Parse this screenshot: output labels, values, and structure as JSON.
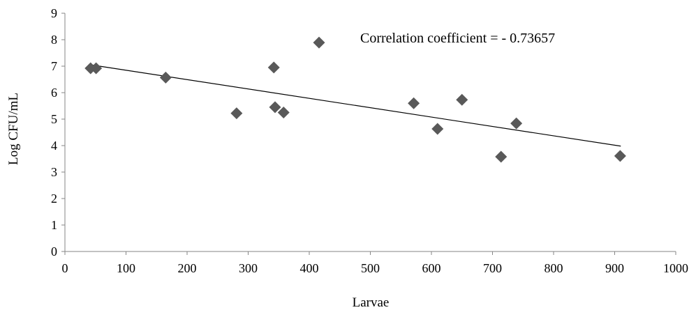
{
  "chart_data": {
    "type": "scatter",
    "xlabel": "Larvae",
    "ylabel": "Log CFU/mL",
    "xlim": [
      0,
      1000
    ],
    "ylim": [
      0,
      9
    ],
    "xticks": [
      0,
      100,
      200,
      300,
      400,
      500,
      600,
      700,
      800,
      900,
      1000
    ],
    "yticks": [
      0,
      1,
      2,
      3,
      4,
      5,
      6,
      7,
      8,
      9
    ],
    "grid": false,
    "legend": "none",
    "marker": "diamond",
    "marker_color": "#595959",
    "series": [
      {
        "points": [
          {
            "x": 42,
            "y": 6.92
          },
          {
            "x": 51,
            "y": 6.92
          },
          {
            "x": 165,
            "y": 6.57
          },
          {
            "x": 281,
            "y": 5.22
          },
          {
            "x": 342,
            "y": 6.95
          },
          {
            "x": 344,
            "y": 5.45
          },
          {
            "x": 358,
            "y": 5.25
          },
          {
            "x": 416,
            "y": 7.89
          },
          {
            "x": 571,
            "y": 5.6
          },
          {
            "x": 610,
            "y": 4.63
          },
          {
            "x": 650,
            "y": 5.73
          },
          {
            "x": 714,
            "y": 3.58
          },
          {
            "x": 739,
            "y": 4.84
          },
          {
            "x": 909,
            "y": 3.61
          }
        ]
      }
    ],
    "trendline": {
      "type": "linear",
      "x_start": 40,
      "y_start": 7.06,
      "x_end": 910,
      "y_end": 3.98,
      "color": "#000000"
    },
    "annotation": {
      "text": "Correlation coefficient = - 0.73657"
    }
  }
}
